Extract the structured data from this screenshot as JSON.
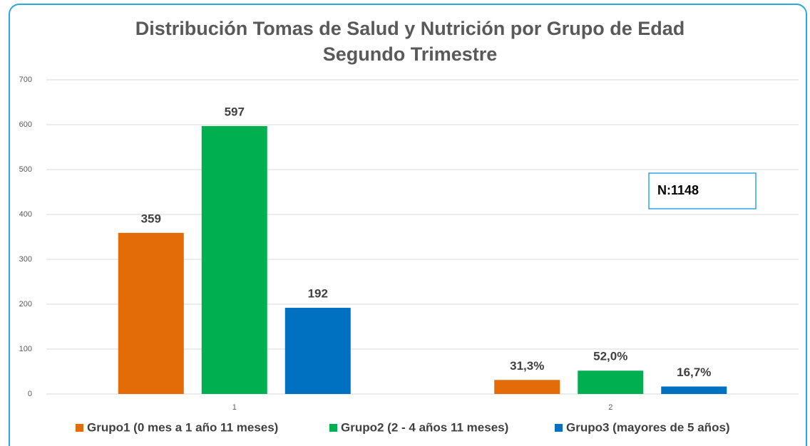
{
  "chart_data": {
    "type": "bar",
    "title": "Distribución Tomas de Salud y Nutrición por Grupo de Edad",
    "subtitle": "Segundo Trimestre",
    "categories": [
      "1",
      "2"
    ],
    "series": [
      {
        "name": "Grupo1 (0 mes a 1 año 11 meses)",
        "color": "#e36c09",
        "values": [
          359,
          31.3
        ],
        "value_labels": [
          "359",
          "31,3%"
        ]
      },
      {
        "name": "Grupo2 (2 - 4 años 11 meses)",
        "color": "#00b050",
        "values": [
          597,
          52.0
        ],
        "value_labels": [
          "597",
          "52,0%"
        ]
      },
      {
        "name": "Grupo3 (mayores de 5 años)",
        "color": "#0070c0",
        "values": [
          192,
          16.7
        ],
        "value_labels": [
          "192",
          "16,7%"
        ]
      }
    ],
    "ylim": [
      0,
      700
    ],
    "yticks": [
      0,
      100,
      200,
      300,
      400,
      500,
      600,
      700
    ],
    "grid": true,
    "legend": "bottom",
    "annotations": [
      "N:1148"
    ]
  }
}
